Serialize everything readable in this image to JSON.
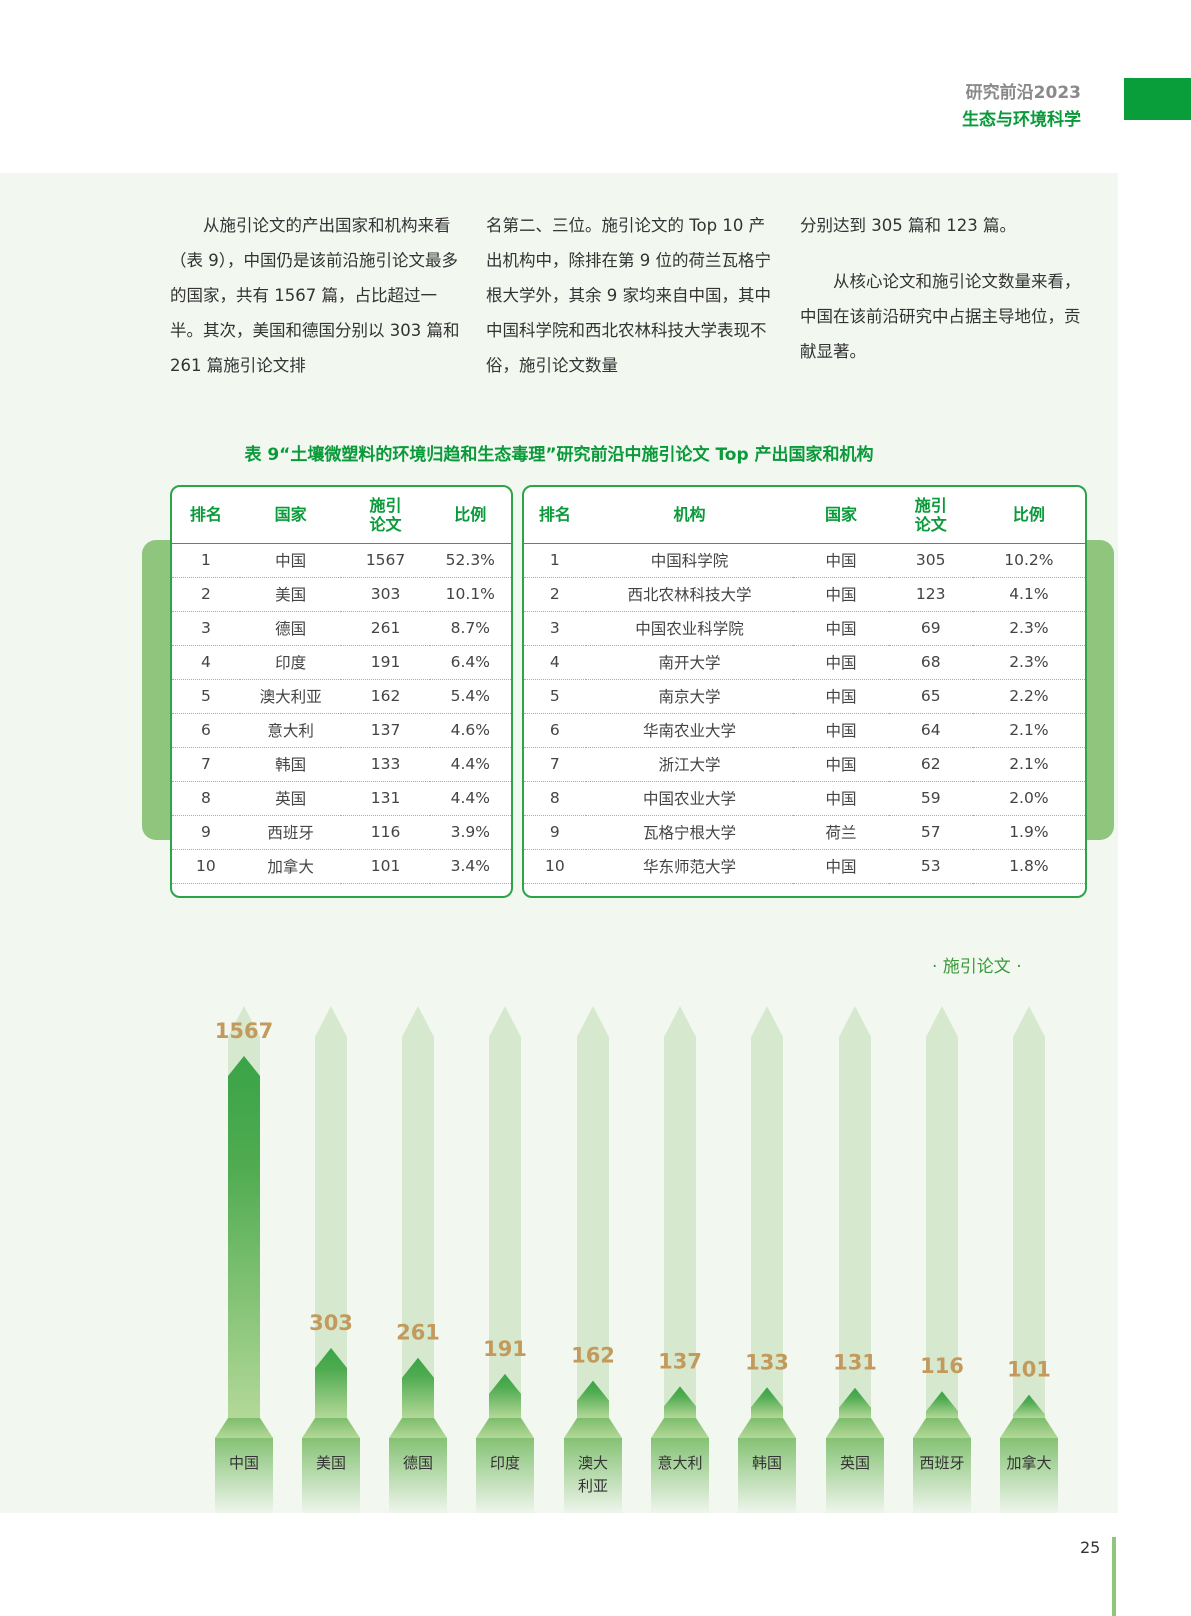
{
  "header": {
    "series": "研究前沿2023",
    "subject": "生态与环境科学"
  },
  "body_text": [
    "从施引论文的产出国家和机构来看（表 9），中国仍是该前沿施引论文最多的国家，共有 1567 篇，占比超过一半。其次，美国和德国分别以 303 篇和 261 篇施引论文排",
    "名第二、三位。施引论文的 Top 10 产出机构中，除排在第 9 位的荷兰瓦格宁根大学外，其余 9 家均来自中国，其中中国科学院和西北农林科技大学表现不俗，施引论文数量",
    "分别达到 305 篇和 123 篇。",
    "从核心论文和施引论文数量来看，中国在该前沿研究中占据主导地位，贡献显著。"
  ],
  "table": {
    "title": "表 9“土壤微塑料的环境归趋和生态毒理”研究前沿中施引论文 Top 产出国家和机构",
    "country_headers": [
      "排名",
      "国家",
      "施引论文",
      "比例"
    ],
    "countries": [
      [
        "1",
        "中国",
        "1567",
        "52.3%"
      ],
      [
        "2",
        "美国",
        "303",
        "10.1%"
      ],
      [
        "3",
        "德国",
        "261",
        "8.7%"
      ],
      [
        "4",
        "印度",
        "191",
        "6.4%"
      ],
      [
        "5",
        "澳大利亚",
        "162",
        "5.4%"
      ],
      [
        "6",
        "意大利",
        "137",
        "4.6%"
      ],
      [
        "7",
        "韩国",
        "133",
        "4.4%"
      ],
      [
        "8",
        "英国",
        "131",
        "4.4%"
      ],
      [
        "9",
        "西班牙",
        "116",
        "3.9%"
      ],
      [
        "10",
        "加拿大",
        "101",
        "3.4%"
      ]
    ],
    "inst_headers": [
      "排名",
      "机构",
      "国家",
      "施引论文",
      "比例"
    ],
    "institutions": [
      [
        "1",
        "中国科学院",
        "中国",
        "305",
        "10.2%"
      ],
      [
        "2",
        "西北农林科技大学",
        "中国",
        "123",
        "4.1%"
      ],
      [
        "3",
        "中国农业科学院",
        "中国",
        "69",
        "2.3%"
      ],
      [
        "4",
        "南开大学",
        "中国",
        "68",
        "2.3%"
      ],
      [
        "5",
        "南京大学",
        "中国",
        "65",
        "2.2%"
      ],
      [
        "6",
        "华南农业大学",
        "中国",
        "64",
        "2.1%"
      ],
      [
        "7",
        "浙江大学",
        "中国",
        "62",
        "2.1%"
      ],
      [
        "8",
        "中国农业大学",
        "中国",
        "59",
        "2.0%"
      ],
      [
        "9",
        "瓦格宁根大学",
        "荷兰",
        "57",
        "1.9%"
      ],
      [
        "10",
        "华东师范大学",
        "中国",
        "53",
        "1.8%"
      ]
    ]
  },
  "chart_data": {
    "type": "bar",
    "title": "· 施引论文 ·",
    "categories": [
      "中国",
      "美国",
      "德国",
      "印度",
      "澳大利亚",
      "意大利",
      "韩国",
      "英国",
      "西班牙",
      "加拿大"
    ],
    "category_lines": [
      [
        "中国"
      ],
      [
        "美国"
      ],
      [
        "德国"
      ],
      [
        "印度"
      ],
      [
        "澳大",
        "利亚"
      ],
      [
        "意大利"
      ],
      [
        "韩国"
      ],
      [
        "英国"
      ],
      [
        "西班牙"
      ],
      [
        "加拿大"
      ]
    ],
    "values": [
      1567,
      303,
      261,
      191,
      162,
      137,
      133,
      131,
      116,
      101
    ],
    "ylim": [
      0,
      1567
    ]
  },
  "page_number": "25",
  "colors": {
    "accent": "#0a9a3a",
    "value_label": "#c39a5c",
    "track": "#d6e9cf"
  }
}
